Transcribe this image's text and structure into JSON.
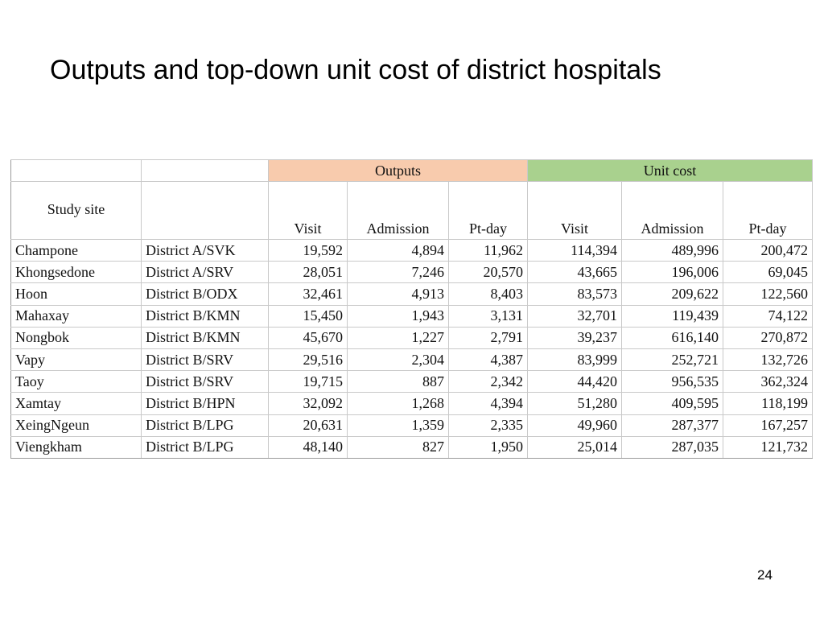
{
  "slide": {
    "title": "Outputs and top-down unit cost of district hospitals",
    "page_number": "24"
  },
  "table": {
    "group_headers": {
      "outputs": "Outputs",
      "unit_cost": "Unit cost"
    },
    "sub_headers": {
      "study_site": "Study site",
      "visit": "Visit",
      "admission": "Admission",
      "pt_day": "Pt-day"
    },
    "colors": {
      "outputs_header_bg": "#f8cbad",
      "unit_cost_header_bg": "#a9d18e"
    },
    "rows": [
      {
        "site": "Champone",
        "district": "District A/SVK",
        "out_visit": "19,592",
        "out_admission": "4,894",
        "out_ptday": "11,962",
        "uc_visit": "114,394",
        "uc_admission": "489,996",
        "uc_ptday": "200,472"
      },
      {
        "site": "Khongsedone",
        "district": "District A/SRV",
        "out_visit": "28,051",
        "out_admission": "7,246",
        "out_ptday": "20,570",
        "uc_visit": "43,665",
        "uc_admission": "196,006",
        "uc_ptday": "69,045"
      },
      {
        "site": "Hoon",
        "district": "District B/ODX",
        "out_visit": "32,461",
        "out_admission": "4,913",
        "out_ptday": "8,403",
        "uc_visit": "83,573",
        "uc_admission": "209,622",
        "uc_ptday": "122,560"
      },
      {
        "site": "Mahaxay",
        "district": "District B/KMN",
        "out_visit": "15,450",
        "out_admission": "1,943",
        "out_ptday": "3,131",
        "uc_visit": "32,701",
        "uc_admission": "119,439",
        "uc_ptday": "74,122"
      },
      {
        "site": "Nongbok",
        "district": "District B/KMN",
        "out_visit": "45,670",
        "out_admission": "1,227",
        "out_ptday": "2,791",
        "uc_visit": "39,237",
        "uc_admission": "616,140",
        "uc_ptday": "270,872"
      },
      {
        "site": "Vapy",
        "district": "District B/SRV",
        "out_visit": "29,516",
        "out_admission": "2,304",
        "out_ptday": "4,387",
        "uc_visit": "83,999",
        "uc_admission": "252,721",
        "uc_ptday": "132,726"
      },
      {
        "site": "Taoy",
        "district": "District B/SRV",
        "out_visit": "19,715",
        "out_admission": "887",
        "out_ptday": "2,342",
        "uc_visit": "44,420",
        "uc_admission": "956,535",
        "uc_ptday": "362,324"
      },
      {
        "site": "Xamtay",
        "district": "District B/HPN",
        "out_visit": "32,092",
        "out_admission": "1,268",
        "out_ptday": "4,394",
        "uc_visit": "51,280",
        "uc_admission": "409,595",
        "uc_ptday": "118,199"
      },
      {
        "site": "XeingNgeun",
        "district": "District B/LPG",
        "out_visit": "20,631",
        "out_admission": "1,359",
        "out_ptday": "2,335",
        "uc_visit": "49,960",
        "uc_admission": "287,377",
        "uc_ptday": "167,257"
      },
      {
        "site": "Viengkham",
        "district": "District B/LPG",
        "out_visit": "48,140",
        "out_admission": "827",
        "out_ptday": "1,950",
        "uc_visit": "25,014",
        "uc_admission": "287,035",
        "uc_ptday": "121,732"
      }
    ]
  }
}
